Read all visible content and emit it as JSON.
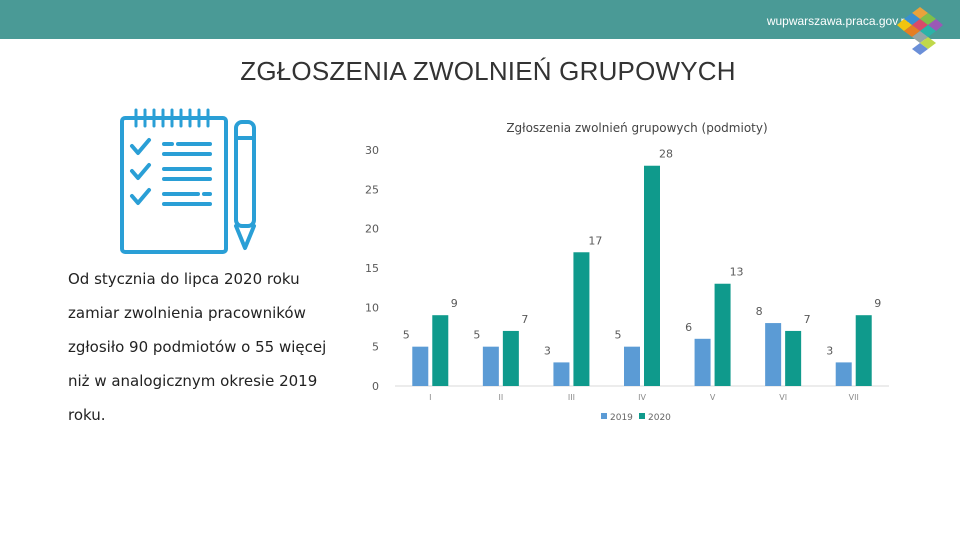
{
  "header": {
    "site_url": "wupwarszawa.praca.gov.pl",
    "bar_color": "#4a9a96"
  },
  "page": {
    "title": "ZGŁOSZENIA ZWOLNIEŃ GRUPOWYCH"
  },
  "summary": {
    "lines": [
      "Od stycznia do lipca 2020 roku",
      "zamiar zwolnienia pracowników",
      "zgłosiło 90 podmiotów o 55 więcej",
      "niż w analogicznym okresie 2019",
      "roku."
    ]
  },
  "icons": {
    "notepad": "notepad-checklist-icon",
    "pencil": "pencil-icon",
    "logo": "wup-logo-icon"
  },
  "chart_data": {
    "type": "bar",
    "title": "Zgłoszenia zwolnień grupowych (podmioty)",
    "categories": [
      "I",
      "II",
      "III",
      "IV",
      "V",
      "VI",
      "VII"
    ],
    "series": [
      {
        "name": "2019",
        "values": [
          5,
          5,
          3,
          5,
          6,
          8,
          3
        ],
        "color": "#5b9bd5"
      },
      {
        "name": "2020",
        "values": [
          9,
          7,
          17,
          28,
          13,
          7,
          9
        ],
        "color": "#0f9a8c"
      }
    ],
    "ylim": [
      0,
      30
    ],
    "yticks": [
      0,
      5,
      10,
      15,
      20,
      25,
      30
    ],
    "grid": false,
    "legend": "bottom",
    "data_labels": true
  }
}
